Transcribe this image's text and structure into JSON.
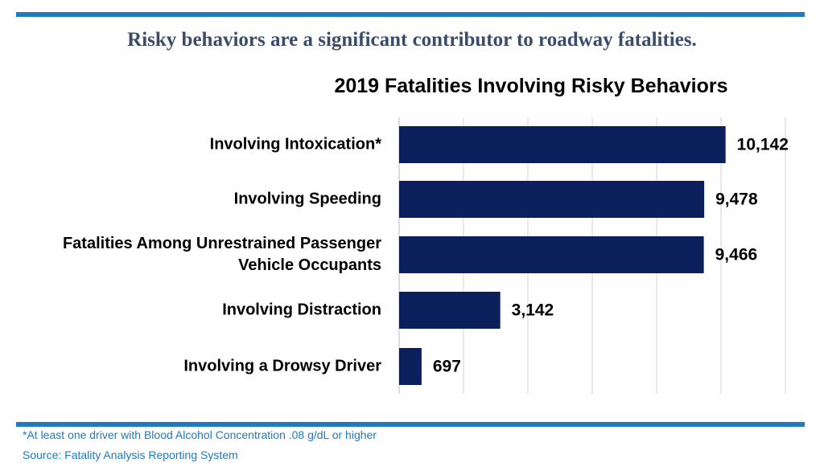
{
  "headline": "Risky behaviors are a significant contributor to roadway fatalities.",
  "footnotes": {
    "asterisk_note": "*At least one driver with Blood Alcohol Concentration .08 g/dL or higher",
    "source": "Source: Fatality Analysis Reporting System"
  },
  "colors": {
    "rule": "#1f7abf",
    "headline": "#3b4c6b",
    "bar": "#0a1f5c",
    "footnote": "#1f7abf",
    "grid": "#d0d0d0"
  },
  "chart_data": {
    "type": "bar",
    "orientation": "horizontal",
    "title": "2019 Fatalities Involving Risky Behaviors",
    "categories": [
      "Involving Intoxication*",
      "Involving Speeding",
      "Fatalities Among Unrestrained Passenger Vehicle Occupants",
      "Involving Distraction",
      "Involving a Drowsy Driver"
    ],
    "values": [
      10142,
      9478,
      9466,
      3142,
      697
    ],
    "data_labels": [
      "10,142",
      "9,478",
      "9,466",
      "3,142",
      "697"
    ],
    "xlim": [
      0,
      12000
    ],
    "x_gridlines": [
      0,
      2000,
      4000,
      6000,
      8000,
      10000,
      12000
    ],
    "grid": true,
    "x_tick_labels_shown": false,
    "legend": "none"
  }
}
